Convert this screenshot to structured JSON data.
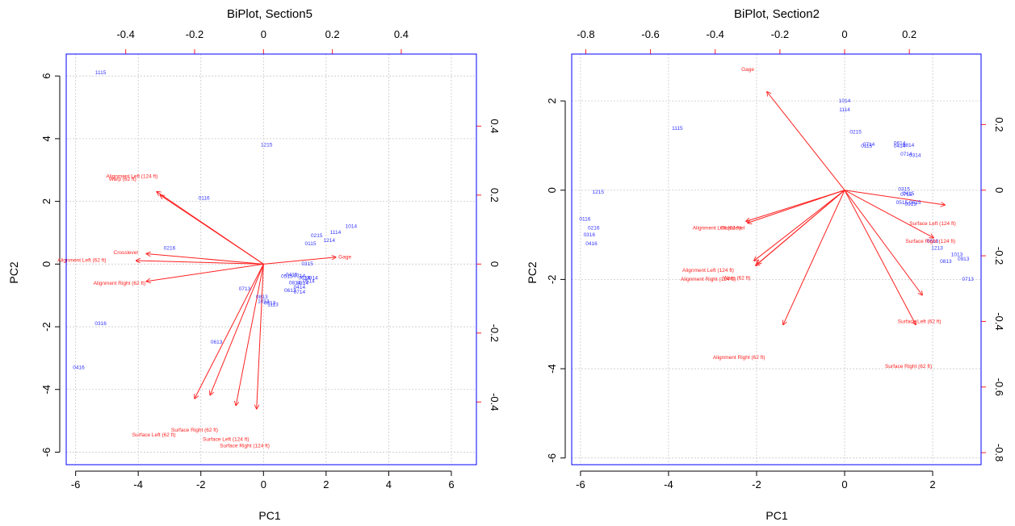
{
  "colors": {
    "observations": "#3333ff",
    "variables": "#ff2020",
    "frame": "#0000ff",
    "grid": "#c8c8c8",
    "axes_black": "#000000"
  },
  "chart_data": [
    {
      "type": "scatter",
      "subtype": "biplot",
      "title": "BiPlot, Section5",
      "xlabel": "PC1",
      "ylabel": "PC2",
      "xlim": [
        -6.3,
        6.8
      ],
      "ylim": [
        -6.4,
        6.7
      ],
      "x_ticks": [
        -6,
        -4,
        -2,
        0,
        2,
        4,
        6
      ],
      "y_ticks": [
        -6,
        -4,
        -2,
        0,
        2,
        4,
        6
      ],
      "top_ticks": [
        -0.4,
        -0.2,
        0.0,
        0.2,
        0.4
      ],
      "right_ticks": [
        -0.4,
        -0.2,
        0.0,
        0.2,
        0.4
      ],
      "loading_scale": 11,
      "grid": true,
      "points": [
        {
          "label": "1115",
          "x": -5.2,
          "y": 6.1
        },
        {
          "label": "1215",
          "x": 0.1,
          "y": 3.8
        },
        {
          "label": "0116",
          "x": -1.9,
          "y": 2.1
        },
        {
          "label": "0216",
          "x": -3.0,
          "y": 0.5
        },
        {
          "label": "1014",
          "x": 2.8,
          "y": 1.2
        },
        {
          "label": "1114",
          "x": 2.3,
          "y": 1.0
        },
        {
          "label": "0215",
          "x": 1.7,
          "y": 0.9
        },
        {
          "label": "1214",
          "x": 2.1,
          "y": 0.75
        },
        {
          "label": "0115",
          "x": 1.5,
          "y": 0.65
        },
        {
          "label": "0315",
          "x": 1.4,
          "y": 0.0
        },
        {
          "label": "0415",
          "x": 0.9,
          "y": -0.35
        },
        {
          "label": "0515",
          "x": 0.75,
          "y": -0.4
        },
        {
          "label": "0714",
          "x": 1.15,
          "y": -0.38
        },
        {
          "label": "0614",
          "x": 1.3,
          "y": -0.45
        },
        {
          "label": "0914",
          "x": 1.55,
          "y": -0.45
        },
        {
          "label": "0814",
          "x": 1.0,
          "y": -0.6
        },
        {
          "label": "0314",
          "x": 1.25,
          "y": -0.62
        },
        {
          "label": "0514",
          "x": 1.45,
          "y": -0.55
        },
        {
          "label": "0414",
          "x": 1.15,
          "y": -0.75
        },
        {
          "label": "0613",
          "x": 0.85,
          "y": -0.85
        },
        {
          "label": "0714",
          "x": 1.15,
          "y": -0.9
        },
        {
          "label": "0713",
          "x": -0.6,
          "y": -0.8
        },
        {
          "label": "0813",
          "x": -0.05,
          "y": -1.05
        },
        {
          "label": "1013",
          "x": 0.0,
          "y": -1.2
        },
        {
          "label": "0913",
          "x": 0.2,
          "y": -1.25
        },
        {
          "label": "1113",
          "x": 0.3,
          "y": -1.3
        },
        {
          "label": "0613",
          "x": -1.5,
          "y": -2.5
        },
        {
          "label": "0316",
          "x": -5.2,
          "y": -1.9
        },
        {
          "label": "0416",
          "x": -5.9,
          "y": -3.3
        }
      ],
      "vectors": [
        {
          "label": "Gage",
          "x": 0.21,
          "y": 0.02,
          "lx": 2.6,
          "ly": 0.22
        },
        {
          "label": "Alignment Left (124 ft)",
          "x": -0.31,
          "y": 0.21,
          "lx": -4.2,
          "ly": 2.8
        },
        {
          "label": "Warp (62 ft)",
          "x": -0.3,
          "y": 0.2,
          "lx": -4.5,
          "ly": 2.7
        },
        {
          "label": "Crosslevel",
          "x": -0.34,
          "y": 0.03,
          "lx": -4.4,
          "ly": 0.36
        },
        {
          "label": "Alignment Left (62 ft)",
          "x": -0.37,
          "y": 0.01,
          "lx": -5.8,
          "ly": 0.12
        },
        {
          "label": "Alignment Right (62 ft)",
          "x": -0.34,
          "y": -0.05,
          "lx": -4.6,
          "ly": -0.62
        },
        {
          "label": "Surface Right (62 ft)",
          "x": -0.2,
          "y": -0.39,
          "lx": -2.2,
          "ly": -5.3
        },
        {
          "label": "Surface Left (62 ft)",
          "x": -0.155,
          "y": -0.38,
          "lx": -3.5,
          "ly": -5.45
        },
        {
          "label": "Surface Left (124 ft)",
          "x": -0.08,
          "y": -0.41,
          "lx": -1.2,
          "ly": -5.6
        },
        {
          "label": "Surface Right (124 ft)",
          "x": -0.02,
          "y": -0.42,
          "lx": -0.6,
          "ly": -5.8
        }
      ]
    },
    {
      "type": "scatter",
      "subtype": "biplot",
      "title": "BiPlot, Section2",
      "xlabel": "PC1",
      "ylabel": "PC2",
      "xlim": [
        -6.2,
        3.1
      ],
      "ylim": [
        -6.15,
        3.05
      ],
      "x_ticks": [
        -6,
        -4,
        -2,
        0,
        2
      ],
      "y_ticks": [
        -6,
        -4,
        -2,
        0,
        2
      ],
      "top_ticks": [
        -0.8,
        -0.6,
        -0.4,
        -0.2,
        0.0,
        0.2
      ],
      "right_ticks": [
        -0.8,
        -0.6,
        -0.4,
        -0.2,
        0.0,
        0.2
      ],
      "loading_scale": 7.35,
      "grid": true,
      "points": [
        {
          "label": "1014",
          "x": 0.0,
          "y": 2.0
        },
        {
          "label": "1114",
          "x": 0.0,
          "y": 1.8
        },
        {
          "label": "1115",
          "x": -3.8,
          "y": 1.38
        },
        {
          "label": "0215",
          "x": 0.25,
          "y": 1.3
        },
        {
          "label": "0714",
          "x": 0.55,
          "y": 1.02
        },
        {
          "label": "0115",
          "x": 0.5,
          "y": 0.98
        },
        {
          "label": "0614",
          "x": 1.25,
          "y": 1.05
        },
        {
          "label": "0814",
          "x": 1.45,
          "y": 1.0
        },
        {
          "label": "0414",
          "x": 1.25,
          "y": 0.98
        },
        {
          "label": "0714",
          "x": 1.4,
          "y": 0.8
        },
        {
          "label": "0314",
          "x": 1.6,
          "y": 0.78
        },
        {
          "label": "1215",
          "x": -5.6,
          "y": -0.05
        },
        {
          "label": "0315",
          "x": 1.35,
          "y": 0.02
        },
        {
          "label": "0415",
          "x": 1.45,
          "y": -0.08
        },
        {
          "label": "0715",
          "x": 1.4,
          "y": -0.1
        },
        {
          "label": "0515",
          "x": 1.3,
          "y": -0.28
        },
        {
          "label": "0615",
          "x": 1.6,
          "y": -0.28
        },
        {
          "label": "0913",
          "x": 1.5,
          "y": -0.32
        },
        {
          "label": "0116",
          "x": -5.9,
          "y": -0.65
        },
        {
          "label": "0216",
          "x": -5.7,
          "y": -0.85
        },
        {
          "label": "0316",
          "x": -5.8,
          "y": -1.0
        },
        {
          "label": "0416",
          "x": -5.75,
          "y": -1.2
        },
        {
          "label": "0613",
          "x": 2.0,
          "y": -1.15
        },
        {
          "label": "1213",
          "x": 2.1,
          "y": -1.3
        },
        {
          "label": "1013",
          "x": 2.55,
          "y": -1.45
        },
        {
          "label": "0913",
          "x": 2.7,
          "y": -1.55
        },
        {
          "label": "0813",
          "x": 2.3,
          "y": -1.6
        },
        {
          "label": "0713",
          "x": 2.8,
          "y": -2.0
        }
      ],
      "vectors": [
        {
          "label": "Gage",
          "x": -0.24,
          "y": 0.3,
          "lx": -2.2,
          "ly": 2.7
        },
        {
          "label": "Alignment Left (62 ft)",
          "x": -0.3,
          "y": -0.1,
          "lx": -2.9,
          "ly": -0.85
        },
        {
          "label": "Crosslevel",
          "x": -0.305,
          "y": -0.095,
          "lx": -2.55,
          "ly": -0.85
        },
        {
          "label": "Alignment Left (124 ft)",
          "x": -0.27,
          "y": -0.225,
          "lx": -3.1,
          "ly": -1.8
        },
        {
          "label": "Warp (62 ft)",
          "x": -0.28,
          "y": -0.215,
          "lx": -2.45,
          "ly": -1.97
        },
        {
          "label": "Alignment Right (124 ft)",
          "x": -0.275,
          "y": -0.23,
          "lx": -3.1,
          "ly": -2.0
        },
        {
          "label": "Alignment Right (62 ft)",
          "x": -0.19,
          "y": -0.41,
          "lx": -2.4,
          "ly": -3.75
        },
        {
          "label": "Surface Left (124 ft)",
          "x": 0.31,
          "y": -0.045,
          "lx": 2.0,
          "ly": -0.75
        },
        {
          "label": "Surface Right (124 ft)",
          "x": 0.275,
          "y": -0.145,
          "lx": 1.95,
          "ly": -1.15
        },
        {
          "label": "Surface Left (62 ft)",
          "x": 0.24,
          "y": -0.32,
          "lx": 1.7,
          "ly": -2.95
        },
        {
          "label": "Surface Right (62 ft)",
          "x": 0.22,
          "y": -0.41,
          "lx": 1.45,
          "ly": -3.95
        }
      ]
    }
  ]
}
